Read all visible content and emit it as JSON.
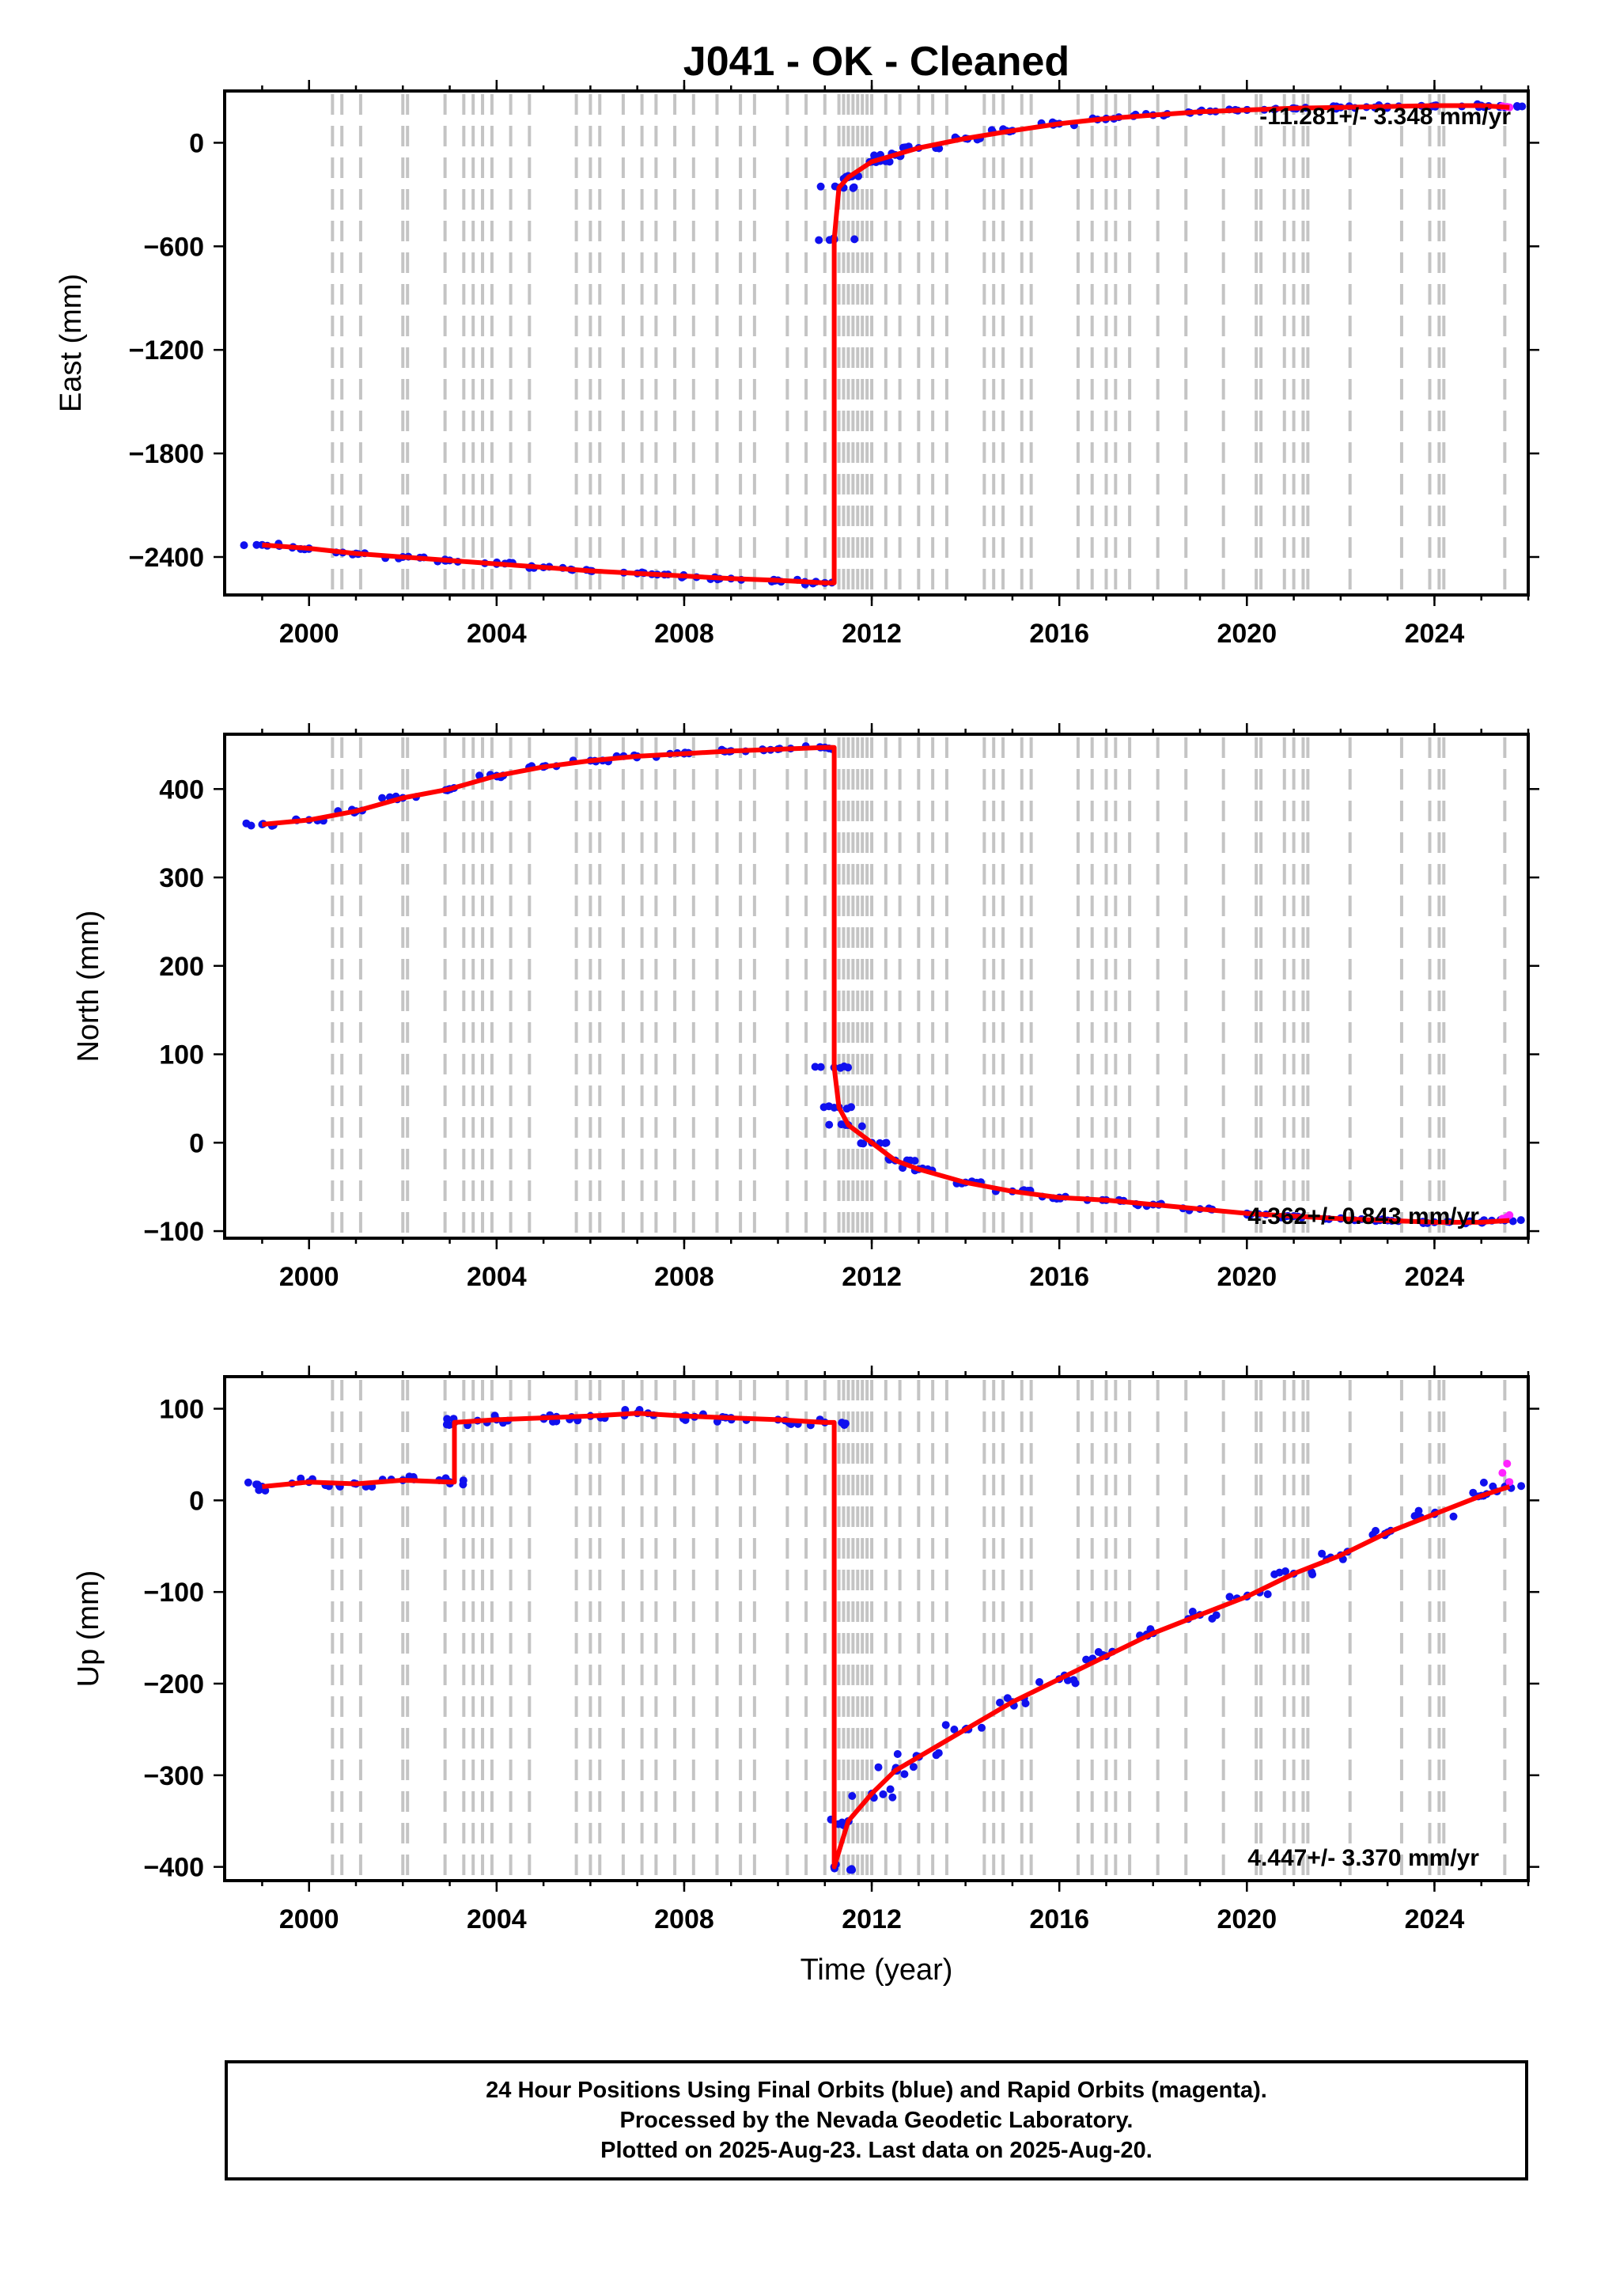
{
  "chart_data": [
    {
      "type": "scatter",
      "title": "J041  - OK - Cleaned",
      "ylabel": "East (mm)",
      "xlabel": "",
      "xlim": [
        1998.2,
        2026.0
      ],
      "ylim": [
        -2620,
        300
      ],
      "x_ticks": [
        2000,
        2004,
        2008,
        2012,
        2016,
        2020,
        2024
      ],
      "y_ticks": [
        0,
        -600,
        -1200,
        -1800,
        -2400
      ],
      "y_tick_labels": [
        "0",
        "−600",
        "−1200",
        "−1800",
        "−2400"
      ],
      "rate_label": "-11.281+/- 3.348 mm/yr",
      "series": [
        {
          "name": "Final Orbits",
          "color": "#1010ee",
          "x": [
            1999.0,
            2000.0,
            2001.0,
            2002.0,
            2003.0,
            2004.0,
            2005.0,
            2006.0,
            2007.0,
            2008.0,
            2009.0,
            2010.0,
            2011.0,
            2011.2,
            2011.3,
            2011.5,
            2012.0,
            2012.5,
            2013.0,
            2014.0,
            2015.0,
            2016.0,
            2017.0,
            2018.0,
            2019.0,
            2020.0,
            2021.0,
            2022.0,
            2023.0,
            2024.0,
            2025.0,
            2025.5
          ],
          "y": [
            -2330,
            -2350,
            -2380,
            -2400,
            -2420,
            -2440,
            -2460,
            -2480,
            -2495,
            -2510,
            -2525,
            -2535,
            -2550,
            -560,
            -260,
            -200,
            -110,
            -70,
            -30,
            25,
            70,
            110,
            140,
            160,
            180,
            190,
            200,
            205,
            210,
            215,
            215,
            205
          ]
        },
        {
          "name": "Rapid Orbits",
          "color": "#ff22ff",
          "x": [
            2025.45,
            2025.55,
            2025.6
          ],
          "y": [
            212,
            208,
            205
          ]
        },
        {
          "name": "Model",
          "color": "#ff0000",
          "x": [
            1999.0,
            2000.0,
            2001.0,
            2002.0,
            2003.0,
            2004.0,
            2005.0,
            2006.0,
            2007.0,
            2008.0,
            2009.0,
            2010.0,
            2011.0,
            2011.2,
            2011.2,
            2011.3,
            2011.5,
            2012.0,
            2012.5,
            2013.0,
            2014.0,
            2015.0,
            2016.0,
            2017.0,
            2018.0,
            2019.0,
            2020.0,
            2021.0,
            2022.0,
            2023.0,
            2024.0,
            2025.0,
            2025.6
          ],
          "y": [
            -2330,
            -2350,
            -2380,
            -2400,
            -2420,
            -2440,
            -2460,
            -2480,
            -2495,
            -2510,
            -2525,
            -2535,
            -2550,
            -2550,
            -560,
            -260,
            -200,
            -110,
            -70,
            -30,
            25,
            70,
            110,
            140,
            160,
            180,
            190,
            200,
            205,
            210,
            215,
            215,
            205
          ]
        }
      ]
    },
    {
      "type": "scatter",
      "title": "",
      "ylabel": "North (mm)",
      "xlabel": "",
      "xlim": [
        1998.2,
        2026.0
      ],
      "ylim": [
        -108,
        462
      ],
      "x_ticks": [
        2000,
        2004,
        2008,
        2012,
        2016,
        2020,
        2024
      ],
      "y_ticks": [
        400,
        300,
        200,
        100,
        0,
        -100
      ],
      "y_tick_labels": [
        "400",
        "300",
        "200",
        "100",
        "0",
        "−100"
      ],
      "rate_label": "4.362+/- 0.843 mm/yr",
      "series": [
        {
          "name": "Final Orbits",
          "color": "#1010ee",
          "x": [
            1999.0,
            2000.0,
            2001.0,
            2002.0,
            2003.0,
            2004.0,
            2005.0,
            2006.0,
            2007.0,
            2008.0,
            2009.0,
            2010.0,
            2011.0,
            2011.2,
            2011.3,
            2011.5,
            2012.0,
            2012.5,
            2013.0,
            2014.0,
            2015.0,
            2016.0,
            2017.0,
            2018.0,
            2019.0,
            2020.0,
            2021.0,
            2022.0,
            2023.0,
            2024.0,
            2025.0,
            2025.5
          ],
          "y": [
            360,
            365,
            375,
            390,
            400,
            415,
            425,
            432,
            437,
            440,
            443,
            445,
            447,
            85,
            40,
            20,
            0,
            -20,
            -30,
            -45,
            -55,
            -62,
            -65,
            -70,
            -75,
            -80,
            -83,
            -86,
            -88,
            -90,
            -90,
            -88
          ]
        },
        {
          "name": "Rapid Orbits",
          "color": "#ff22ff",
          "x": [
            2025.45,
            2025.55,
            2025.6
          ],
          "y": [
            -86,
            -84,
            -82
          ]
        },
        {
          "name": "Model",
          "color": "#ff0000",
          "x": [
            1999.0,
            2000.0,
            2001.0,
            2002.0,
            2003.0,
            2004.0,
            2005.0,
            2006.0,
            2007.0,
            2008.0,
            2009.0,
            2010.0,
            2011.0,
            2011.2,
            2011.2,
            2011.3,
            2011.5,
            2012.0,
            2012.5,
            2013.0,
            2014.0,
            2015.0,
            2016.0,
            2017.0,
            2018.0,
            2019.0,
            2020.0,
            2021.0,
            2022.0,
            2023.0,
            2024.0,
            2025.0,
            2025.6
          ],
          "y": [
            360,
            365,
            375,
            390,
            400,
            415,
            425,
            432,
            437,
            440,
            443,
            445,
            447,
            447,
            85,
            40,
            20,
            0,
            -20,
            -30,
            -45,
            -55,
            -62,
            -65,
            -70,
            -75,
            -80,
            -83,
            -86,
            -88,
            -90,
            -90,
            -88
          ]
        }
      ]
    },
    {
      "type": "scatter",
      "title": "",
      "ylabel": "Up (mm)",
      "xlabel": "Time (year)",
      "xlim": [
        1998.2,
        2026.0
      ],
      "ylim": [
        -415,
        135
      ],
      "x_ticks": [
        2000,
        2004,
        2008,
        2012,
        2016,
        2020,
        2024
      ],
      "y_ticks": [
        100,
        0,
        -100,
        -200,
        -300,
        -400
      ],
      "y_tick_labels": [
        "100",
        "0",
        "−100",
        "−200",
        "−300",
        "−400"
      ],
      "rate_label": "4.447+/- 3.370 mm/yr",
      "series": [
        {
          "name": "Final Orbits",
          "color": "#1010ee",
          "x": [
            1999.0,
            2000.0,
            2001.0,
            2002.0,
            2003.0,
            2003.1,
            2004.0,
            2005.0,
            2006.0,
            2007.0,
            2008.0,
            2009.0,
            2010.0,
            2011.0,
            2011.2,
            2011.5,
            2012.0,
            2012.5,
            2013.0,
            2014.0,
            2015.0,
            2016.0,
            2017.0,
            2018.0,
            2019.0,
            2020.0,
            2021.0,
            2022.0,
            2023.0,
            2024.0,
            2025.0,
            2025.5
          ],
          "y": [
            15,
            20,
            18,
            22,
            20,
            85,
            88,
            90,
            92,
            95,
            92,
            90,
            88,
            85,
            -400,
            -350,
            -320,
            -295,
            -280,
            -250,
            -220,
            -195,
            -170,
            -145,
            -125,
            -105,
            -80,
            -60,
            -35,
            -15,
            5,
            15
          ]
        },
        {
          "name": "Rapid Orbits",
          "color": "#ff22ff",
          "x": [
            2025.45,
            2025.55,
            2025.6
          ],
          "y": [
            30,
            40,
            20
          ]
        },
        {
          "name": "Model",
          "color": "#ff0000",
          "x": [
            1999.0,
            2000.0,
            2001.0,
            2002.0,
            2003.0,
            2003.1,
            2003.1,
            2004.0,
            2005.0,
            2006.0,
            2007.0,
            2008.0,
            2009.0,
            2010.0,
            2011.0,
            2011.2,
            2011.2,
            2011.5,
            2012.0,
            2012.5,
            2013.0,
            2014.0,
            2015.0,
            2016.0,
            2017.0,
            2018.0,
            2019.0,
            2020.0,
            2021.0,
            2022.0,
            2023.0,
            2024.0,
            2025.0,
            2025.6
          ],
          "y": [
            15,
            20,
            18,
            22,
            20,
            20,
            85,
            88,
            90,
            92,
            95,
            92,
            90,
            88,
            85,
            85,
            -400,
            -350,
            -320,
            -295,
            -280,
            -250,
            -220,
            -195,
            -170,
            -145,
            -125,
            -105,
            -80,
            -60,
            -35,
            -15,
            5,
            15
          ]
        }
      ]
    }
  ],
  "equipment_breaks": [
    2000.5,
    2000.7,
    2001.1,
    2002.0,
    2002.1,
    2002.9,
    2003.3,
    2003.5,
    2003.7,
    2003.9,
    2004.3,
    2004.7,
    2005.7,
    2006.0,
    2006.2,
    2006.7,
    2007.1,
    2007.4,
    2007.8,
    2008.2,
    2008.7,
    2009.2,
    2009.5,
    2010.2,
    2010.6,
    2011.0,
    2011.3,
    2011.4,
    2011.5,
    2011.6,
    2011.7,
    2011.8,
    2011.9,
    2012.0,
    2012.3,
    2012.6,
    2013.0,
    2013.3,
    2013.6,
    2014.4,
    2014.6,
    2014.8,
    2015.2,
    2015.4,
    2016.4,
    2016.7,
    2017.0,
    2017.2,
    2017.5,
    2018.1,
    2018.7,
    2019.5,
    2020.2,
    2020.3,
    2020.8,
    2021.0,
    2021.2,
    2021.3,
    2022.2,
    2023.3,
    2023.9,
    2024.1,
    2024.2,
    2025.5
  ],
  "footer": {
    "line1": "24 Hour Positions Using Final Orbits (blue) and Rapid Orbits (magenta).",
    "line2": "Processed by the Nevada Geodetic Laboratory.",
    "line3": "Plotted on 2025-Aug-23. Last data on 2025-Aug-20."
  }
}
